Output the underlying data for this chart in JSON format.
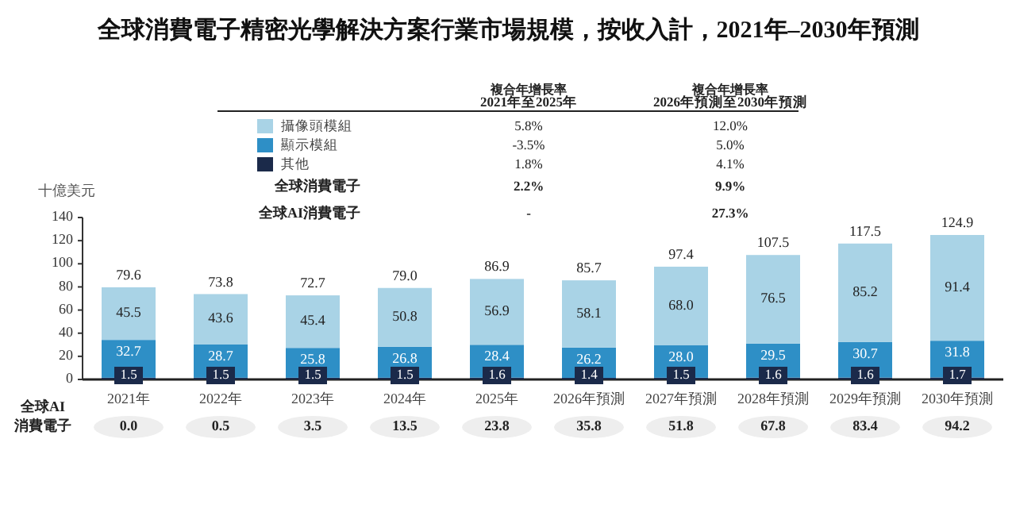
{
  "chart_data": {
    "type": "bar",
    "title": "全球消費電子精密光學解決方案行業市場規模，按收入計，2021年–2030年預測",
    "ylabel": "十億美元",
    "categories": [
      "2021年",
      "2022年",
      "2023年",
      "2024年",
      "2025年",
      "2026年預測",
      "2027年預測",
      "2028年預測",
      "2029年預測",
      "2030年預測"
    ],
    "stacked": true,
    "series": [
      {
        "name": "其他",
        "color": "#1b2a4a",
        "values": [
          1.5,
          1.5,
          1.5,
          1.5,
          1.6,
          1.4,
          1.5,
          1.6,
          1.6,
          1.7
        ],
        "value_labels": [
          "1.5",
          "1.5",
          "1.5",
          "1.5",
          "1.6",
          "1.4",
          "1.5",
          "1.6",
          "1.6",
          "1.7"
        ]
      },
      {
        "name": "顯示模組",
        "color": "#2e8fc6",
        "values": [
          32.7,
          28.7,
          25.8,
          26.8,
          28.4,
          26.2,
          28.0,
          29.5,
          30.7,
          31.8
        ],
        "value_labels": [
          "32.7",
          "28.7",
          "25.8",
          "26.8",
          "28.4",
          "26.2",
          "28.0",
          "29.5",
          "30.7",
          "31.8"
        ]
      },
      {
        "name": "攝像頭模組",
        "color": "#a9d3e6",
        "values": [
          45.5,
          43.6,
          45.4,
          50.8,
          56.9,
          58.1,
          68.0,
          76.5,
          85.2,
          91.4
        ],
        "value_labels": [
          "45.5",
          "43.6",
          "45.4",
          "50.8",
          "56.9",
          "58.1",
          "68.0",
          "76.5",
          "85.2",
          "91.4"
        ]
      }
    ],
    "totals": [
      "79.6",
      "73.8",
      "72.7",
      "79.0",
      "86.9",
      "85.7",
      "97.4",
      "107.5",
      "117.5",
      "124.9"
    ],
    "data_labels": false,
    "ylim": [
      0,
      140
    ],
    "yticks": [
      0,
      20,
      40,
      60,
      80,
      100,
      120,
      140
    ],
    "grid": false,
    "legend": "top",
    "annotations": [
      "複合年增長率",
      "2021年至2025年",
      "複合年增長率",
      "2026年預測至2030年預測",
      "5.8%",
      "-3.5%",
      "1.8%",
      "12.0%",
      "5.0%",
      "4.1%",
      "全球消費電子",
      "2.2%",
      "9.9%",
      "全球AI消費電子",
      "-",
      "27.3%",
      "全球AI",
      "消費電子",
      "0.0",
      "0.5",
      "3.5",
      "13.5",
      "23.8",
      "35.8",
      "51.8",
      "67.8",
      "83.4",
      "94.2"
    ]
  }
}
